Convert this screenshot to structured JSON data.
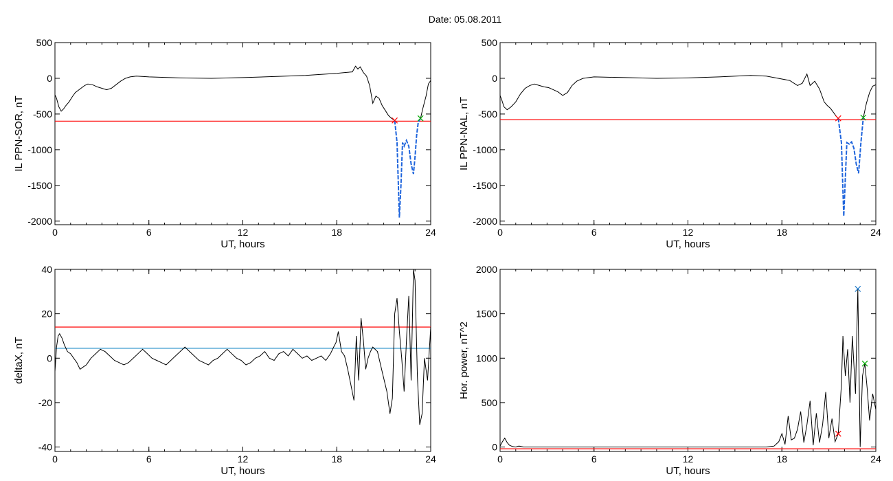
{
  "figure_title": "Date:  05.08.2011",
  "chart_data": [
    {
      "type": "line",
      "xlabel": "UT, hours",
      "ylabel": "IL PPN-SOR, nT",
      "xlim": [
        0,
        24
      ],
      "ylim": [
        -2050,
        500
      ],
      "xticks": [
        0,
        6,
        12,
        18,
        24
      ],
      "yticks": [
        500,
        0,
        -500,
        -1000,
        -1500,
        -2000
      ],
      "threshold_lines": [
        {
          "value": -600,
          "color": "#ff0000"
        }
      ],
      "series": [
        {
          "color": "#000000",
          "x": [
            0,
            0.1,
            0.25,
            0.4,
            0.55,
            0.7,
            0.9,
            1.1,
            1.3,
            1.6,
            1.9,
            2.1,
            2.4,
            2.7,
            3.0,
            3.3,
            3.6,
            3.9,
            4.2,
            4.5,
            4.8,
            5.2,
            6,
            8,
            10,
            12,
            14,
            16,
            17,
            18,
            18.5,
            19,
            19.2,
            19.35,
            19.5,
            19.7,
            19.9,
            20.1,
            20.3,
            20.5,
            20.7,
            20.9,
            21.1,
            21.3,
            21.5,
            21.7
          ],
          "y": [
            -230,
            -280,
            -400,
            -460,
            -430,
            -380,
            -330,
            -260,
            -200,
            -150,
            -100,
            -80,
            -90,
            -120,
            -140,
            -160,
            -140,
            -90,
            -40,
            0,
            20,
            30,
            20,
            5,
            0,
            10,
            25,
            40,
            55,
            70,
            80,
            90,
            170,
            130,
            160,
            80,
            30,
            -100,
            -350,
            -250,
            -280,
            -380,
            -450,
            -520,
            -560,
            -590
          ]
        },
        {
          "color": "#1e64dc",
          "dashed": true,
          "x": [
            21.7,
            21.85,
            22.0,
            22.1,
            22.2,
            22.3,
            22.45,
            22.6,
            22.75,
            22.9,
            23.0,
            23.1,
            23.2,
            23.35
          ],
          "y": [
            -590,
            -900,
            -1950,
            -1500,
            -900,
            -950,
            -870,
            -950,
            -1200,
            -1340,
            -1100,
            -800,
            -620,
            -560
          ]
        },
        {
          "color": "#000000",
          "x": [
            23.35,
            23.5,
            23.7,
            23.85,
            24
          ],
          "y": [
            -560,
            -420,
            -250,
            -80,
            -30
          ]
        }
      ],
      "markers": [
        {
          "x": 21.7,
          "y": -590,
          "color": "#ff0000"
        },
        {
          "x": 23.35,
          "y": -560,
          "color": "#00aa00"
        }
      ]
    },
    {
      "type": "line",
      "xlabel": "UT, hours",
      "ylabel": "IL PPN-NAL, nT",
      "xlim": [
        0,
        24
      ],
      "ylim": [
        -2050,
        500
      ],
      "xticks": [
        0,
        6,
        12,
        18,
        24
      ],
      "yticks": [
        500,
        0,
        -500,
        -1000,
        -1500,
        -2000
      ],
      "threshold_lines": [
        {
          "value": -580,
          "color": "#ff0000"
        }
      ],
      "series": [
        {
          "color": "#000000",
          "x": [
            0,
            0.1,
            0.25,
            0.45,
            0.7,
            1.0,
            1.3,
            1.6,
            1.9,
            2.2,
            2.5,
            2.8,
            3.1,
            3.4,
            3.7,
            4.0,
            4.3,
            4.6,
            4.9,
            5.3,
            6,
            8,
            10,
            12,
            14,
            16,
            17,
            18,
            18.5,
            19,
            19.3,
            19.6,
            19.8,
            20.1,
            20.4,
            20.7,
            20.9,
            21.1,
            21.3,
            21.5,
            21.6
          ],
          "y": [
            -240,
            -300,
            -400,
            -440,
            -400,
            -330,
            -220,
            -140,
            -100,
            -80,
            -100,
            -120,
            -130,
            -160,
            -190,
            -240,
            -200,
            -100,
            -40,
            0,
            20,
            10,
            0,
            5,
            20,
            40,
            30,
            -10,
            -30,
            -100,
            -70,
            60,
            -100,
            -40,
            -150,
            -330,
            -380,
            -420,
            -480,
            -540,
            -560
          ]
        },
        {
          "color": "#1e64dc",
          "dashed": true,
          "x": [
            21.6,
            21.8,
            21.95,
            22.05,
            22.15,
            22.3,
            22.45,
            22.6,
            22.75,
            22.9,
            23.05,
            23.2
          ],
          "y": [
            -560,
            -900,
            -1930,
            -1400,
            -900,
            -920,
            -890,
            -980,
            -1200,
            -1330,
            -900,
            -550
          ]
        },
        {
          "color": "#000000",
          "x": [
            23.2,
            23.4,
            23.6,
            23.8,
            24
          ],
          "y": [
            -550,
            -350,
            -200,
            -110,
            -90
          ]
        }
      ],
      "markers": [
        {
          "x": 21.6,
          "y": -560,
          "color": "#ff0000"
        },
        {
          "x": 23.2,
          "y": -550,
          "color": "#00aa00"
        }
      ]
    },
    {
      "type": "line",
      "xlabel": "UT, hours",
      "ylabel": "deltaX, nT",
      "xlim": [
        0,
        24
      ],
      "ylim": [
        -42,
        40
      ],
      "xticks": [
        0,
        6,
        12,
        18,
        24
      ],
      "yticks": [
        40,
        20,
        0,
        -20,
        -40
      ],
      "threshold_lines": [
        {
          "value": 14,
          "color": "#ff0000"
        },
        {
          "value": 4.5,
          "color": "#1e8cc8"
        }
      ],
      "series": [
        {
          "color": "#000000",
          "x": [
            0,
            0.1,
            0.2,
            0.3,
            0.45,
            0.6,
            0.8,
            1.0,
            1.2,
            1.4,
            1.6,
            1.8,
            2.0,
            2.3,
            2.6,
            2.9,
            3.2,
            3.5,
            3.8,
            4.1,
            4.4,
            4.7,
            5.0,
            5.3,
            5.6,
            5.9,
            6.2,
            6.5,
            6.8,
            7.1,
            7.4,
            7.7,
            8.0,
            8.3,
            8.6,
            8.9,
            9.2,
            9.5,
            9.8,
            10.1,
            10.4,
            10.7,
            11.0,
            11.3,
            11.6,
            11.9,
            12.2,
            12.5,
            12.8,
            13.1,
            13.4,
            13.7,
            14.0,
            14.3,
            14.6,
            14.9,
            15.2,
            15.5,
            15.8,
            16.1,
            16.4,
            16.7,
            17.0,
            17.3,
            17.6,
            17.8,
            17.95,
            18.1,
            18.3,
            18.5,
            18.7,
            18.9,
            19.1,
            19.25,
            19.4,
            19.55,
            19.7,
            19.85,
            20.0,
            20.15,
            20.3,
            20.6,
            20.9,
            21.2,
            21.4,
            21.55,
            21.7,
            21.85,
            22.0,
            22.15,
            22.3,
            22.45,
            22.6,
            22.75,
            22.9,
            23.0,
            23.15,
            23.3,
            23.45,
            23.6,
            23.8,
            24
          ],
          "y": [
            -6,
            5,
            10,
            11,
            9,
            6,
            3,
            2,
            0,
            -2,
            -5,
            -4,
            -3,
            0,
            2,
            4,
            3,
            1,
            -1,
            -2,
            -3,
            -2,
            0,
            2,
            4,
            2,
            0,
            -1,
            -2,
            -3,
            -1,
            1,
            3,
            5,
            3,
            1,
            -1,
            -2,
            -3,
            -1,
            0,
            2,
            4,
            2,
            0,
            -1,
            -3,
            -2,
            0,
            1,
            3,
            0,
            -1,
            2,
            3,
            1,
            4,
            2,
            0,
            1,
            -1,
            0,
            1,
            -1,
            2,
            5,
            7,
            12,
            3,
            1,
            -5,
            -12,
            -19,
            10,
            -10,
            18,
            8,
            -5,
            0,
            3,
            5,
            3,
            -6,
            -15,
            -25,
            -18,
            20,
            27,
            12,
            0,
            -15,
            8,
            28,
            -10,
            40,
            35,
            -8,
            -30,
            -25,
            0,
            -10,
            14
          ]
        }
      ],
      "markers": []
    },
    {
      "type": "line",
      "xlabel": "UT, hours",
      "ylabel": "Hor. power, nT^2",
      "xlim": [
        0,
        24
      ],
      "ylim": [
        -50,
        2000
      ],
      "xticks": [
        0,
        6,
        12,
        18,
        24
      ],
      "yticks": [
        2000,
        1500,
        1000,
        500,
        0
      ],
      "threshold_lines": [
        {
          "value": -20,
          "color": "#ff0000"
        }
      ],
      "series": [
        {
          "color": "#000000",
          "x": [
            0,
            0.15,
            0.3,
            0.45,
            0.6,
            0.8,
            1.0,
            1.2,
            1.5,
            2,
            4,
            6,
            8,
            10,
            12,
            14,
            16,
            17,
            17.5,
            17.8,
            18.0,
            18.2,
            18.4,
            18.6,
            18.8,
            19.0,
            19.2,
            19.4,
            19.6,
            19.8,
            20.0,
            20.2,
            20.4,
            20.6,
            20.8,
            21.0,
            21.2,
            21.4,
            21.6,
            21.8,
            21.9,
            22.05,
            22.2,
            22.35,
            22.5,
            22.7,
            22.85,
            23.0,
            23.15,
            23.3,
            23.45,
            23.6,
            23.8,
            24
          ],
          "y": [
            10,
            60,
            100,
            50,
            20,
            5,
            0,
            10,
            0,
            0,
            0,
            0,
            0,
            0,
            0,
            0,
            0,
            0,
            10,
            60,
            150,
            30,
            350,
            80,
            100,
            200,
            400,
            50,
            250,
            520,
            20,
            380,
            50,
            250,
            620,
            100,
            320,
            60,
            150,
            700,
            1250,
            800,
            1100,
            500,
            1250,
            600,
            1780,
            0,
            800,
            940,
            650,
            300,
            600,
            420
          ]
        }
      ],
      "markers": [
        {
          "x": 21.6,
          "y": 150,
          "color": "#ff0000"
        },
        {
          "x": 22.85,
          "y": 1780,
          "color": "#1e78c8"
        },
        {
          "x": 23.3,
          "y": 940,
          "color": "#00aa00"
        }
      ]
    }
  ]
}
